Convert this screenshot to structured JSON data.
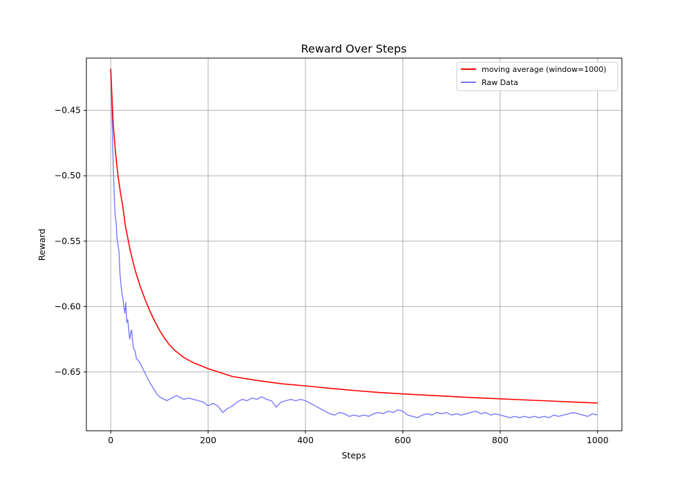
{
  "chart_data": {
    "type": "line",
    "title": "Reward Over Steps",
    "xlabel": "Steps",
    "ylabel": "Reward",
    "xlim": [
      -50,
      1050
    ],
    "ylim": [
      -0.695,
      -0.41
    ],
    "xticks": [
      0,
      200,
      400,
      600,
      800,
      1000
    ],
    "yticks": [
      -0.45,
      -0.5,
      -0.55,
      -0.6,
      -0.65
    ],
    "xtick_labels": [
      "0",
      "200",
      "400",
      "600",
      "800",
      "1000"
    ],
    "ytick_labels": [
      "−0.45",
      "−0.50",
      "−0.55",
      "−0.60",
      "−0.65"
    ],
    "grid": true,
    "legend_position": "top-right",
    "series": [
      {
        "name": "moving average (window=1000)",
        "color": "#ff0000",
        "x": [
          0,
          5,
          10,
          15,
          20,
          25,
          30,
          40,
          50,
          60,
          70,
          80,
          90,
          100,
          110,
          120,
          130,
          140,
          150,
          170,
          200,
          225,
          250,
          300,
          350,
          400,
          450,
          500,
          550,
          600,
          650,
          700,
          750,
          800,
          850,
          900,
          950,
          1000
        ],
        "y": [
          -0.418,
          -0.46,
          -0.483,
          -0.5,
          -0.513,
          -0.524,
          -0.538,
          -0.557,
          -0.572,
          -0.584,
          -0.594,
          -0.603,
          -0.611,
          -0.618,
          -0.624,
          -0.629,
          -0.633,
          -0.636,
          -0.639,
          -0.643,
          -0.6475,
          -0.6505,
          -0.6535,
          -0.6565,
          -0.659,
          -0.6607,
          -0.6625,
          -0.6642,
          -0.6657,
          -0.6668,
          -0.6678,
          -0.6688,
          -0.6698,
          -0.6706,
          -0.6714,
          -0.6722,
          -0.673,
          -0.6738
        ]
      },
      {
        "name": "Raw Data",
        "color": "#7777ff",
        "x": [
          0,
          3,
          5,
          7,
          9,
          11,
          13,
          15,
          17,
          19,
          21,
          23,
          25,
          27,
          29,
          31,
          33,
          35,
          37,
          39,
          41,
          43,
          45,
          47,
          50,
          53,
          56,
          60,
          64,
          68,
          72,
          76,
          80,
          85,
          90,
          95,
          100,
          105,
          110,
          115,
          120,
          125,
          130,
          135,
          140,
          145,
          150,
          160,
          170,
          180,
          190,
          200,
          210,
          220,
          230,
          240,
          250,
          260,
          270,
          280,
          290,
          300,
          310,
          320,
          330,
          340,
          350,
          360,
          370,
          380,
          390,
          400,
          410,
          420,
          430,
          440,
          450,
          460,
          470,
          480,
          490,
          500,
          510,
          520,
          530,
          540,
          550,
          560,
          570,
          580,
          590,
          600,
          610,
          620,
          630,
          640,
          650,
          660,
          670,
          680,
          690,
          700,
          710,
          720,
          730,
          740,
          750,
          760,
          770,
          780,
          790,
          800,
          810,
          820,
          830,
          840,
          850,
          860,
          870,
          880,
          890,
          900,
          910,
          920,
          930,
          940,
          950,
          960,
          970,
          980,
          990,
          1000
        ],
        "y": [
          -0.418,
          -0.46,
          -0.49,
          -0.513,
          -0.53,
          -0.535,
          -0.548,
          -0.553,
          -0.558,
          -0.575,
          -0.583,
          -0.59,
          -0.594,
          -0.6,
          -0.605,
          -0.597,
          -0.612,
          -0.61,
          -0.618,
          -0.625,
          -0.62,
          -0.618,
          -0.627,
          -0.632,
          -0.634,
          -0.64,
          -0.641,
          -0.643,
          -0.646,
          -0.649,
          -0.652,
          -0.655,
          -0.658,
          -0.661,
          -0.664,
          -0.667,
          -0.669,
          -0.67,
          -0.671,
          -0.672,
          -0.671,
          -0.67,
          -0.669,
          -0.668,
          -0.669,
          -0.67,
          -0.671,
          -0.67,
          -0.671,
          -0.672,
          -0.673,
          -0.676,
          -0.674,
          -0.676,
          -0.681,
          -0.678,
          -0.676,
          -0.673,
          -0.671,
          -0.672,
          -0.67,
          -0.671,
          -0.669,
          -0.671,
          -0.672,
          -0.677,
          -0.673,
          -0.672,
          -0.671,
          -0.672,
          -0.671,
          -0.672,
          -0.674,
          -0.676,
          -0.678,
          -0.68,
          -0.682,
          -0.683,
          -0.681,
          -0.682,
          -0.684,
          -0.683,
          -0.684,
          -0.683,
          -0.684,
          -0.682,
          -0.681,
          -0.682,
          -0.68,
          -0.681,
          -0.679,
          -0.68,
          -0.683,
          -0.684,
          -0.685,
          -0.683,
          -0.682,
          -0.683,
          -0.681,
          -0.682,
          -0.681,
          -0.683,
          -0.682,
          -0.683,
          -0.682,
          -0.681,
          -0.68,
          -0.682,
          -0.681,
          -0.683,
          -0.682,
          -0.683,
          -0.684,
          -0.685,
          -0.684,
          -0.685,
          -0.684,
          -0.685,
          -0.684,
          -0.685,
          -0.684,
          -0.685,
          -0.683,
          -0.684,
          -0.683,
          -0.682,
          -0.681,
          -0.682,
          -0.683,
          -0.684,
          -0.682,
          -0.683
        ]
      }
    ]
  }
}
